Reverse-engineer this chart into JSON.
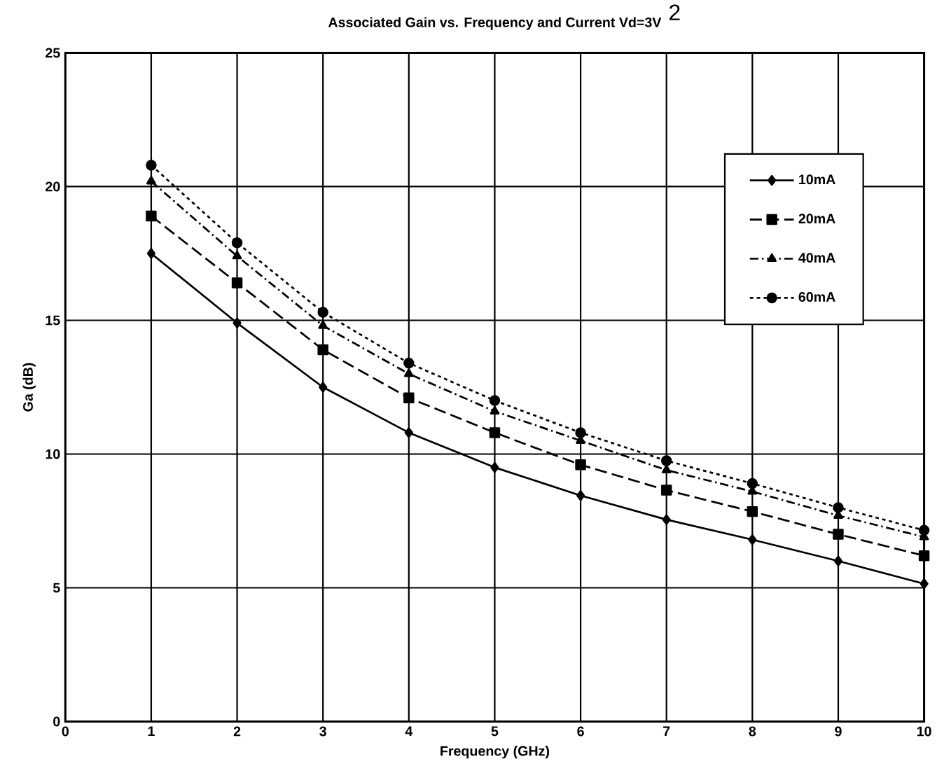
{
  "chart_data": {
    "type": "line",
    "title": "Associated Gain vs. Frequency and Current Vd=3V",
    "annotations": [
      "2"
    ],
    "xlabel": "Frequency (GHz)",
    "ylabel": "Ga (dB)",
    "x": [
      1,
      2,
      3,
      4,
      5,
      6,
      7,
      8,
      9,
      10
    ],
    "series": [
      {
        "name": "10mA",
        "color": "#000000",
        "marker": "diamond",
        "line_style": "solid",
        "values": [
          17.5,
          14.9,
          12.5,
          10.8,
          9.5,
          8.45,
          7.55,
          6.8,
          6.0,
          5.15
        ]
      },
      {
        "name": "20mA",
        "color": "#000000",
        "marker": "square",
        "line_style": "dashed",
        "values": [
          18.9,
          16.4,
          13.9,
          12.1,
          10.8,
          9.6,
          8.65,
          7.85,
          7.0,
          6.2
        ]
      },
      {
        "name": "40mA",
        "color": "#000000",
        "marker": "triangle",
        "line_style": "dashdot",
        "values": [
          20.2,
          17.4,
          14.8,
          13.0,
          11.6,
          10.5,
          9.4,
          8.6,
          7.7,
          6.9
        ]
      },
      {
        "name": "60mA",
        "color": "#000000",
        "marker": "circle",
        "line_style": "dotted",
        "values": [
          20.8,
          17.9,
          15.3,
          13.4,
          12.0,
          10.8,
          9.75,
          8.9,
          8.0,
          7.15
        ]
      }
    ],
    "xlim": [
      0,
      10
    ],
    "ylim": [
      0,
      25
    ],
    "xticks": [
      0,
      1,
      2,
      3,
      4,
      5,
      6,
      7,
      8,
      9,
      10
    ],
    "yticks": [
      0,
      5,
      10,
      15,
      20,
      25
    ],
    "grid": true,
    "legend": "top right"
  }
}
